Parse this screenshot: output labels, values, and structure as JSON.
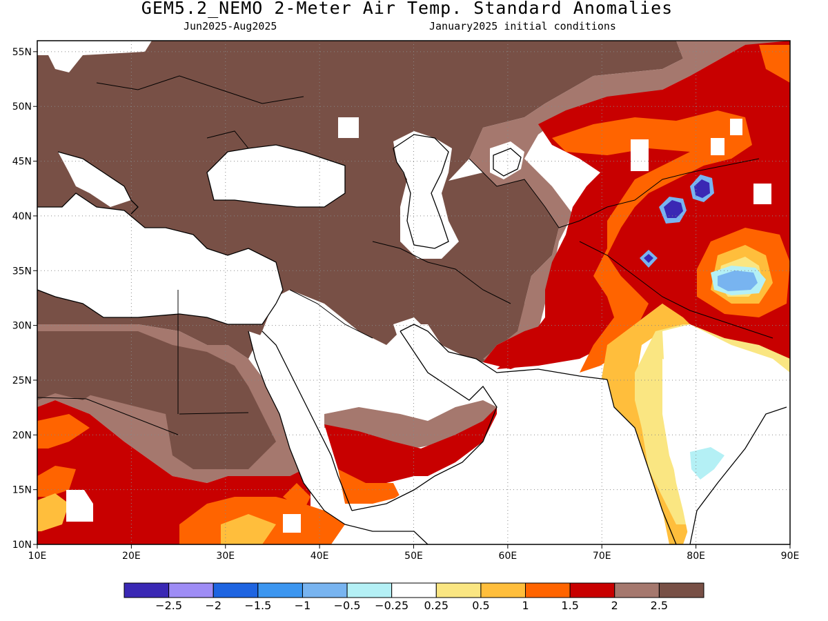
{
  "title": "GEM5.2_NEMO 2-Meter Air Temp. Standard Anomalies",
  "subtitle_left": "Jun2025-Aug2025",
  "subtitle_right": "January2025 initial conditions",
  "map": {
    "lon_range": [
      10,
      90
    ],
    "lat_range": [
      10,
      56
    ],
    "lon_ticks": [
      {
        "v": 10,
        "label": "10E"
      },
      {
        "v": 20,
        "label": "20E"
      },
      {
        "v": 30,
        "label": "30E"
      },
      {
        "v": 40,
        "label": "40E"
      },
      {
        "v": 50,
        "label": "50E"
      },
      {
        "v": 60,
        "label": "60E"
      },
      {
        "v": 70,
        "label": "70E"
      },
      {
        "v": 80,
        "label": "80E"
      },
      {
        "v": 90,
        "label": "90E"
      }
    ],
    "lat_ticks": [
      {
        "v": 10,
        "label": "10N"
      },
      {
        "v": 15,
        "label": "15N"
      },
      {
        "v": 20,
        "label": "20N"
      },
      {
        "v": 25,
        "label": "25N"
      },
      {
        "v": 30,
        "label": "30N"
      },
      {
        "v": 35,
        "label": "35N"
      },
      {
        "v": 40,
        "label": "40N"
      },
      {
        "v": 45,
        "label": "45N"
      },
      {
        "v": 50,
        "label": "50N"
      },
      {
        "v": 55,
        "label": "55N"
      }
    ],
    "grid": "dotted"
  },
  "colorbar": {
    "colors": [
      "#3a28b4",
      "#9e8cf5",
      "#1e64e1",
      "#3c96f0",
      "#78b4f0",
      "#b4f0f5",
      "#ffffff",
      "#fae682",
      "#ffbe3c",
      "#ff6400",
      "#c80000",
      "#a5786e",
      "#785046"
    ],
    "labels": [
      "-2.5",
      "-2",
      "-1.5",
      "-1",
      "-0.5",
      "-0.25",
      "0.25",
      "0.5",
      "1",
      "1.5",
      "2",
      "2.5"
    ]
  }
}
